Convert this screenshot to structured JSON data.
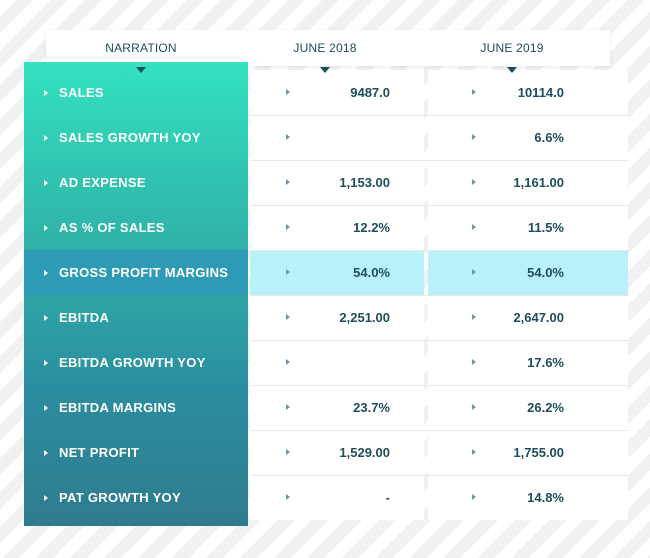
{
  "headers": {
    "narration": "NARRATION",
    "col1": "JUNE 2018",
    "col2": "JUNE 2019"
  },
  "rows": [
    {
      "label": "SALES",
      "v1": "9487.0",
      "v2": "10114.0"
    },
    {
      "label": "SALES GROWTH YOY",
      "v1": "",
      "v2": "6.6%"
    },
    {
      "label": "AD EXPENSE",
      "v1": "1,153.00",
      "v2": "1,161.00"
    },
    {
      "label": "AS % OF SALES",
      "v1": "12.2%",
      "v2": "11.5%"
    },
    {
      "label": "GROSS PROFIT MARGINS",
      "v1": "54.0%",
      "v2": "54.0%"
    },
    {
      "label": "EBITDA",
      "v1": "2,251.00",
      "v2": "2,647.00"
    },
    {
      "label": "EBITDA GROWTH YOY",
      "v1": "",
      "v2": "17.6%"
    },
    {
      "label": "EBITDA MARGINS",
      "v1": "23.7%",
      "v2": "26.2%"
    },
    {
      "label": "NET PROFIT",
      "v1": "1,529.00",
      "v2": "1,755.00"
    },
    {
      "label": "PAT GROWTH YOY",
      "v1": "-",
      "v2": "14.8%"
    }
  ],
  "highlight_row": "GROSS PROFIT MARGINS",
  "colors": {
    "panel_top": "#33e2c0",
    "panel_bottom": "#2f7b8e",
    "text_dark": "#1e4d5c",
    "highlight": "#b9f1fa"
  }
}
